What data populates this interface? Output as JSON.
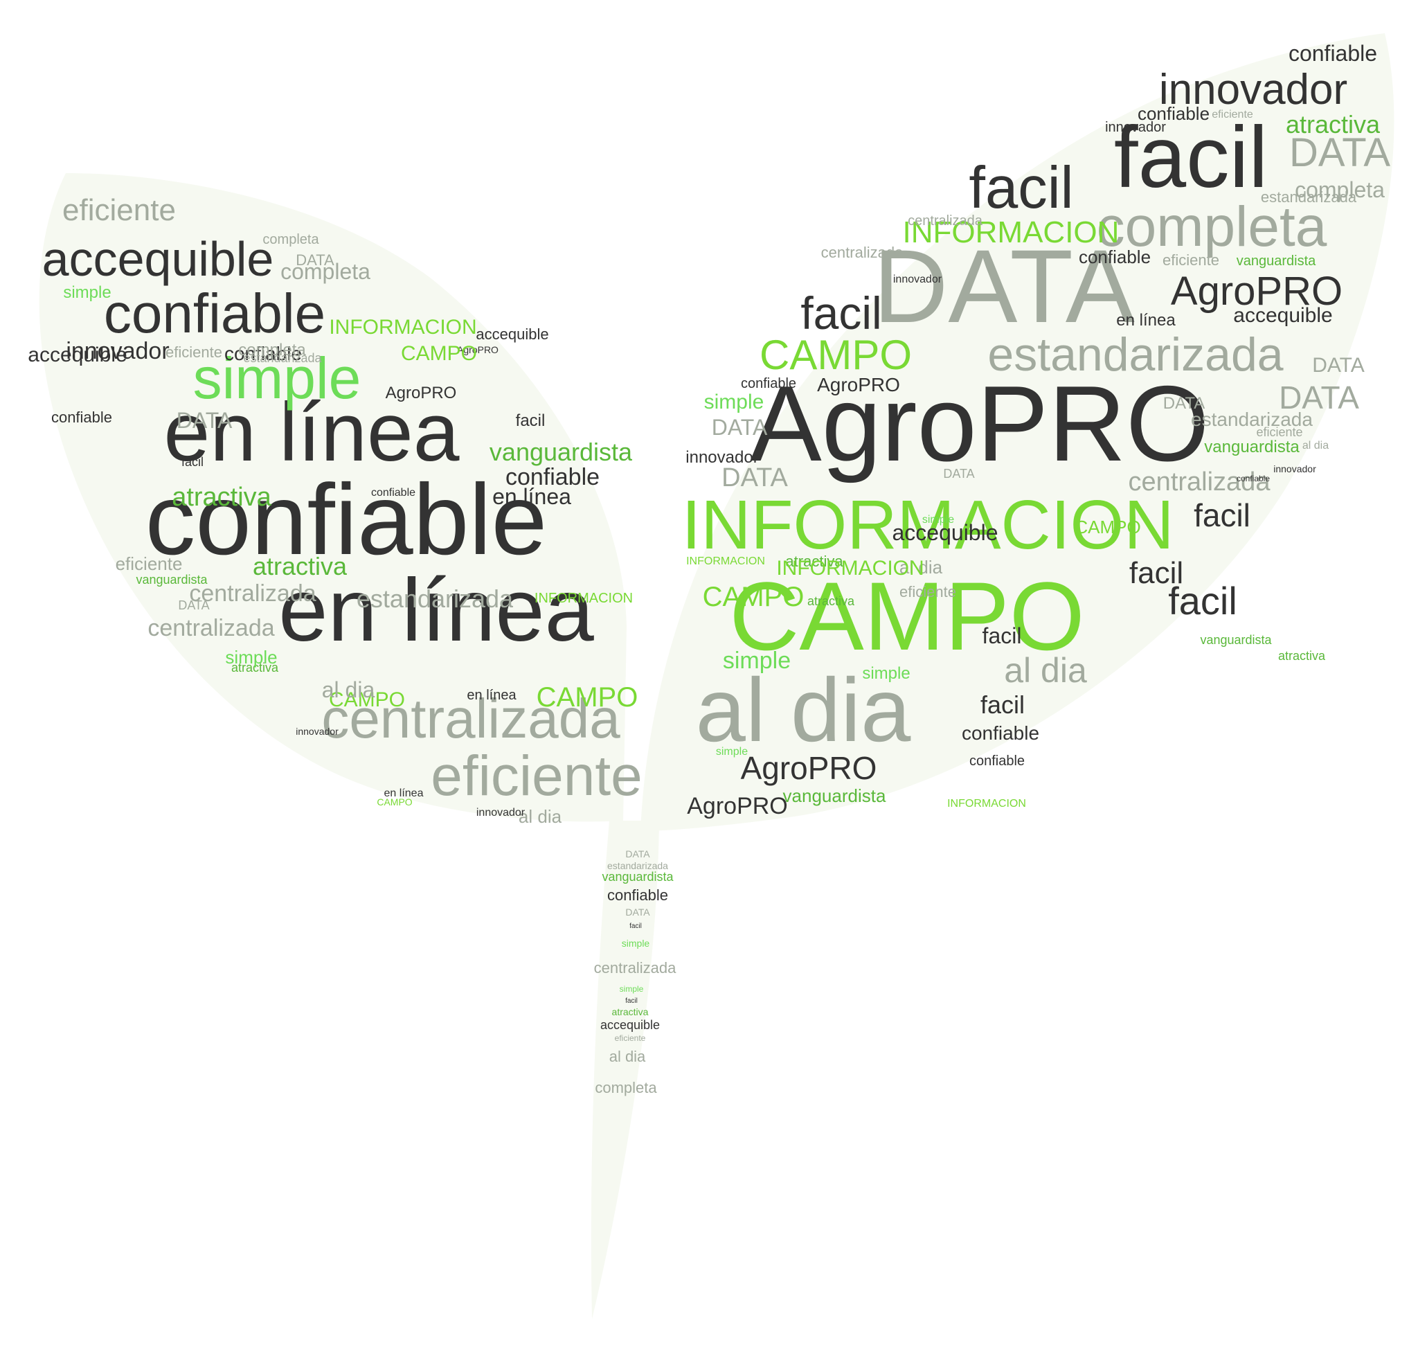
{
  "colors": {
    "background": "#ffffff",
    "silhouette": "#f6f9f1",
    "dark": "#333333",
    "gray": "#a2aa9e",
    "green_bright": "#79d934",
    "green_mid": "#5ab83a",
    "green_light": "#6ddc58",
    "green_dark": "#62ad32"
  },
  "shape": {
    "icon": "seedling-sprout-icon",
    "parts": [
      "left-leaf",
      "right-leaf",
      "stem"
    ]
  },
  "words": [
    {
      "text": "AgroPRO",
      "color": "dark"
    },
    {
      "text": "CAMPO",
      "color": "green_bright"
    },
    {
      "text": "INFORMACION",
      "color": "green_bright"
    },
    {
      "text": "DATA",
      "color": "gray"
    },
    {
      "text": "al dia",
      "color": "gray"
    },
    {
      "text": "facil",
      "color": "dark"
    },
    {
      "text": "facil",
      "color": "dark"
    },
    {
      "text": "completa",
      "color": "gray"
    },
    {
      "text": "innovador",
      "color": "dark"
    },
    {
      "text": "confiable",
      "color": "dark"
    },
    {
      "text": "estandarizada",
      "color": "gray"
    },
    {
      "text": "AgroPRO",
      "color": "dark"
    },
    {
      "text": "INFORMACION",
      "color": "green_bright"
    },
    {
      "text": "CAMPO",
      "color": "green_bright"
    },
    {
      "text": "facil",
      "color": "dark"
    },
    {
      "text": "accequible",
      "color": "dark"
    },
    {
      "text": "DATA",
      "color": "gray"
    },
    {
      "text": "atractiva",
      "color": "green_mid"
    },
    {
      "text": "DATA",
      "color": "gray"
    },
    {
      "text": "completa",
      "color": "gray"
    },
    {
      "text": "DATA",
      "color": "gray"
    },
    {
      "text": "vanguardista",
      "color": "green_mid"
    },
    {
      "text": "centralizada",
      "color": "gray"
    },
    {
      "text": "facil",
      "color": "dark"
    },
    {
      "text": "facil",
      "color": "dark"
    },
    {
      "text": "facil",
      "color": "dark"
    },
    {
      "text": "facil",
      "color": "dark"
    },
    {
      "text": "al dia",
      "color": "gray"
    },
    {
      "text": "facil",
      "color": "dark"
    },
    {
      "text": "confiable",
      "color": "dark"
    },
    {
      "text": "AgroPRO",
      "color": "dark"
    },
    {
      "text": "AgroPRO",
      "color": "dark"
    },
    {
      "text": "vanguardista",
      "color": "green_mid"
    },
    {
      "text": "CAMPO",
      "color": "green_bright"
    },
    {
      "text": "innovador",
      "color": "dark"
    },
    {
      "text": "DATA",
      "color": "gray"
    },
    {
      "text": "atractiva",
      "color": "green_mid"
    },
    {
      "text": "eficiente",
      "color": "gray"
    },
    {
      "text": "estandarizada",
      "color": "gray"
    },
    {
      "text": "vanguardista",
      "color": "green_mid"
    },
    {
      "text": "simple",
      "color": "green_light"
    },
    {
      "text": "simple",
      "color": "green_light"
    },
    {
      "text": "simple",
      "color": "green_light"
    },
    {
      "text": "simple",
      "color": "green_light"
    },
    {
      "text": "DATA",
      "color": "gray"
    },
    {
      "text": "DATA",
      "color": "gray"
    },
    {
      "text": "al dia",
      "color": "gray"
    },
    {
      "text": "DATA",
      "color": "gray"
    },
    {
      "text": "confiable",
      "color": "dark"
    },
    {
      "text": "en línea",
      "color": "dark"
    },
    {
      "text": "innovador",
      "color": "dark"
    },
    {
      "text": "eficiente",
      "color": "gray"
    },
    {
      "text": "centralizada",
      "color": "gray"
    },
    {
      "text": "confiable",
      "color": "dark"
    },
    {
      "text": "en línea",
      "color": "dark"
    },
    {
      "text": "confiable",
      "color": "dark"
    },
    {
      "text": "confiable",
      "color": "dark"
    },
    {
      "text": "accequible",
      "color": "dark"
    },
    {
      "text": "atractiva",
      "color": "green_mid"
    },
    {
      "text": "atractiva",
      "color": "green_mid"
    },
    {
      "text": "INFORMACION",
      "color": "green_bright"
    },
    {
      "text": "innovador",
      "color": "dark"
    },
    {
      "text": "en línea",
      "color": "dark"
    },
    {
      "text": "en línea",
      "color": "dark"
    },
    {
      "text": "simple",
      "color": "green_light"
    },
    {
      "text": "eficiente",
      "color": "gray"
    },
    {
      "text": "centralizada",
      "color": "gray"
    },
    {
      "text": "accequible",
      "color": "dark"
    },
    {
      "text": "accequible",
      "color": "dark"
    },
    {
      "text": "innovador",
      "color": "dark"
    },
    {
      "text": "completa",
      "color": "gray"
    },
    {
      "text": "completa",
      "color": "gray"
    },
    {
      "text": "completa",
      "color": "gray"
    },
    {
      "text": "al dia",
      "color": "gray"
    },
    {
      "text": "INFORMACION",
      "color": "green_bright"
    },
    {
      "text": "INFORMACION",
      "color": "green_bright"
    },
    {
      "text": "INFORMACION",
      "color": "green_bright"
    },
    {
      "text": "CAMPO",
      "color": "green_bright"
    },
    {
      "text": "vanguardista",
      "color": "green_mid"
    },
    {
      "text": "vanguardista",
      "color": "green_mid"
    },
    {
      "text": "atractiva",
      "color": "green_mid"
    },
    {
      "text": "en línea",
      "color": "dark"
    },
    {
      "text": "confiable",
      "color": "dark"
    },
    {
      "text": "AgroPRO",
      "color": "dark"
    },
    {
      "text": "AgroPRO",
      "color": "dark"
    },
    {
      "text": "AgroPRO",
      "color": "dark"
    },
    {
      "text": "CAMPO",
      "color": "green_bright"
    },
    {
      "text": "DATA",
      "color": "gray"
    },
    {
      "text": "completa",
      "color": "gray"
    },
    {
      "text": "al dia",
      "color": "gray"
    },
    {
      "text": "centralizada",
      "color": "gray"
    },
    {
      "text": "estandarizada",
      "color": "gray"
    },
    {
      "text": "estandarizada",
      "color": "gray"
    },
    {
      "text": "eficiente",
      "color": "gray"
    },
    {
      "text": "simple",
      "color": "green_light"
    },
    {
      "text": "simple",
      "color": "green_light"
    },
    {
      "text": "simple",
      "color": "green_light"
    },
    {
      "text": "accequible",
      "color": "dark"
    },
    {
      "text": "confiable",
      "color": "dark"
    },
    {
      "text": "en línea",
      "color": "dark"
    },
    {
      "text": "en línea",
      "color": "dark"
    },
    {
      "text": "confiable",
      "color": "dark"
    },
    {
      "text": "simple",
      "color": "green_light"
    },
    {
      "text": "accequible",
      "color": "dark"
    },
    {
      "text": "centralizada",
      "color": "gray"
    },
    {
      "text": "eficiente",
      "color": "gray"
    },
    {
      "text": "atractiva",
      "color": "green_mid"
    },
    {
      "text": "DATA",
      "color": "gray"
    },
    {
      "text": "estandarizada",
      "color": "gray"
    },
    {
      "text": "centralizada",
      "color": "gray"
    },
    {
      "text": "innovador",
      "color": "dark"
    },
    {
      "text": "completa",
      "color": "gray"
    },
    {
      "text": "en línea",
      "color": "dark"
    },
    {
      "text": "confiable",
      "color": "dark"
    },
    {
      "text": "vanguardista",
      "color": "green_mid"
    },
    {
      "text": "CAMPO",
      "color": "green_bright"
    },
    {
      "text": "facil",
      "color": "dark"
    },
    {
      "text": "CAMPO",
      "color": "green_bright"
    },
    {
      "text": "accequible",
      "color": "dark"
    },
    {
      "text": "al dia",
      "color": "gray"
    },
    {
      "text": "DATA",
      "color": "gray"
    },
    {
      "text": "INFORMACION",
      "color": "green_bright"
    },
    {
      "text": "eficiente",
      "color": "gray"
    },
    {
      "text": "completa",
      "color": "gray"
    },
    {
      "text": "simple",
      "color": "green_light"
    },
    {
      "text": "atractiva",
      "color": "green_mid"
    },
    {
      "text": "en línea",
      "color": "dark"
    },
    {
      "text": "facil",
      "color": "dark"
    },
    {
      "text": "AgroPRO",
      "color": "dark"
    },
    {
      "text": "CAMPO",
      "color": "green_bright"
    },
    {
      "text": "INFORMACION",
      "color": "green_bright"
    },
    {
      "text": "al dia",
      "color": "gray"
    },
    {
      "text": "accequible",
      "color": "dark"
    },
    {
      "text": "confiable",
      "color": "dark"
    },
    {
      "text": "completa",
      "color": "gray"
    },
    {
      "text": "eficiente",
      "color": "gray"
    },
    {
      "text": "estandarizada",
      "color": "gray"
    },
    {
      "text": "centralizada",
      "color": "gray"
    },
    {
      "text": "vanguardista",
      "color": "green_mid"
    },
    {
      "text": "simple",
      "color": "green_light"
    },
    {
      "text": "CAMPO",
      "color": "green_bright"
    },
    {
      "text": "DATA",
      "color": "gray"
    },
    {
      "text": "innovador",
      "color": "dark"
    },
    {
      "text": "atractiva",
      "color": "green_mid"
    },
    {
      "text": "AgroPRO",
      "color": "dark"
    },
    {
      "text": "en línea",
      "color": "dark"
    },
    {
      "text": "confiable",
      "color": "dark"
    },
    {
      "text": "centralizada",
      "color": "gray"
    },
    {
      "text": "innovador",
      "color": "dark"
    },
    {
      "text": "confiable",
      "color": "dark"
    },
    {
      "text": "atractiva",
      "color": "green_mid"
    },
    {
      "text": "simple",
      "color": "green_light"
    },
    {
      "text": "accequible",
      "color": "dark"
    },
    {
      "text": "eficiente",
      "color": "gray"
    },
    {
      "text": "INFORMACION",
      "color": "green_bright"
    },
    {
      "text": "DATA",
      "color": "gray"
    },
    {
      "text": "CAMPO",
      "color": "green_bright"
    },
    {
      "text": "estandarizada",
      "color": "gray"
    },
    {
      "text": "vanguardista",
      "color": "green_mid"
    },
    {
      "text": "confiable",
      "color": "dark"
    },
    {
      "text": "DATA",
      "color": "gray"
    },
    {
      "text": "facil",
      "color": "dark"
    },
    {
      "text": "simple",
      "color": "green_light"
    },
    {
      "text": "centralizada",
      "color": "gray"
    },
    {
      "text": "simple",
      "color": "green_light"
    },
    {
      "text": "facil",
      "color": "dark"
    },
    {
      "text": "atractiva",
      "color": "green_mid"
    },
    {
      "text": "accequible",
      "color": "dark"
    },
    {
      "text": "eficiente",
      "color": "gray"
    },
    {
      "text": "al dia",
      "color": "gray"
    },
    {
      "text": "completa",
      "color": "gray"
    },
    {
      "text": "facil",
      "color": "dark"
    },
    {
      "text": "facil",
      "color": "dark"
    }
  ]
}
